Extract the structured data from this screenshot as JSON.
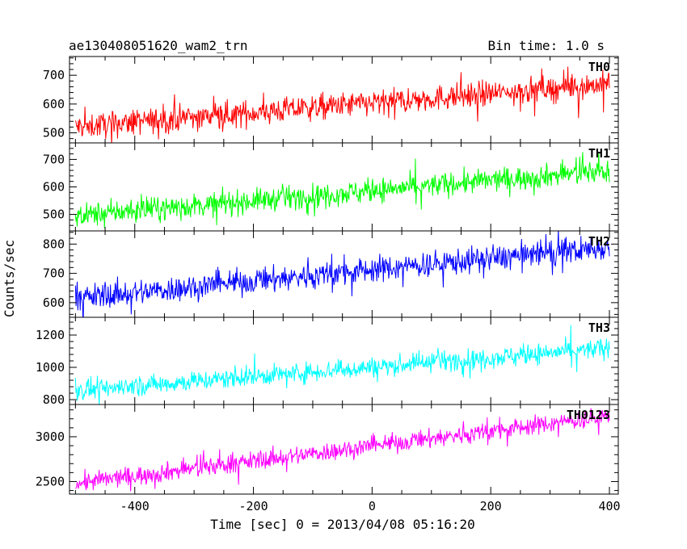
{
  "header": {
    "title": "ae130408051620_wam2_trn",
    "bin_time": "Bin time: 1.0 s"
  },
  "chart_data": {
    "type": "line",
    "title": "ae130408051620_wam2_trn",
    "xlabel": "Time [sec] 0 = 2013/04/08 05:16:20",
    "ylabel": "Counts/sec",
    "xlim": [
      -510,
      415
    ],
    "x_ticks": [
      -400,
      -200,
      0,
      200,
      400
    ],
    "x_range": [
      -500,
      400
    ],
    "panels": [
      {
        "name": "TH0",
        "color": "#ff0000",
        "ylim": [
          465,
          765
        ],
        "y_ticks": [
          500,
          600,
          700
        ],
        "trend_start": 520,
        "trend_end": 670,
        "noise": 40,
        "spike": 60
      },
      {
        "name": "TH1",
        "color": "#00ff00",
        "ylim": [
          440,
          760
        ],
        "y_ticks": [
          500,
          600,
          700
        ],
        "trend_start": 495,
        "trend_end": 660,
        "noise": 38,
        "spike": 55
      },
      {
        "name": "TH2",
        "color": "#0000ff",
        "ylim": [
          550,
          845
        ],
        "y_ticks": [
          600,
          700,
          800
        ],
        "trend_start": 615,
        "trend_end": 790,
        "noise": 40,
        "spike": 60
      },
      {
        "name": "TH3",
        "color": "#00ffff",
        "ylim": [
          770,
          1310
        ],
        "y_ticks": [
          800,
          1000,
          1200
        ],
        "trend_start": 855,
        "trend_end": 1120,
        "noise": 55,
        "spike": 90
      },
      {
        "name": "TH0123",
        "color": "#ff00ff",
        "ylim": [
          2360,
          3360
        ],
        "y_ticks": [
          2500,
          3000
        ],
        "trend_start": 2480,
        "trend_end": 3230,
        "noise": 95,
        "spike": 140
      }
    ]
  }
}
